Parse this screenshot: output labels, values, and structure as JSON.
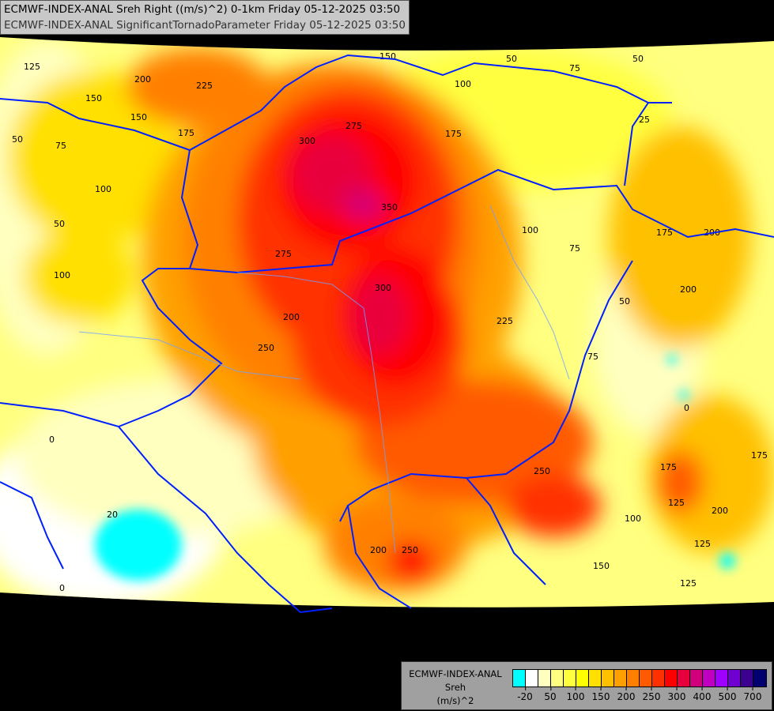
{
  "header": {
    "line1": "ECMWF-INDEX-ANAL Sreh Right ((m/s)^2) 0-1km Friday 05-12-2025 03:50",
    "line2": "ECMWF-INDEX-ANAL SignificantTornadoParameter Friday 05-12-2025 03:50"
  },
  "legend": {
    "model": "ECMWF-INDEX-ANAL",
    "parameter": "Sreh",
    "unit": "(m/s)^2",
    "colors": [
      "#00ffff",
      "#ffffff",
      "#ffffc0",
      "#ffff80",
      "#ffff40",
      "#ffff00",
      "#ffe000",
      "#ffc000",
      "#ffa000",
      "#ff8000",
      "#ff5a00",
      "#ff3000",
      "#ff0000",
      "#e8003c",
      "#d0007c",
      "#c000c0",
      "#a000ff",
      "#7000d0",
      "#3c0090",
      "#000070"
    ],
    "tick_labels": [
      "-20",
      "50",
      "100",
      "150",
      "200",
      "250",
      "300",
      "400",
      "500",
      "700"
    ]
  },
  "contour_labels": [
    "125",
    "200",
    "225",
    "150",
    "175",
    "50",
    "75",
    "100",
    "50",
    "100",
    "275",
    "300",
    "350",
    "275",
    "300",
    "200",
    "250",
    "225",
    "175",
    "100",
    "75",
    "50",
    "75",
    "200",
    "175",
    "200",
    "175",
    "250",
    "200",
    "250",
    "150",
    "125",
    "100",
    "175",
    "125",
    "200",
    "50",
    "75",
    "0",
    "20",
    "0",
    "150",
    "100",
    "150",
    "50",
    "25",
    "0",
    "125"
  ]
}
